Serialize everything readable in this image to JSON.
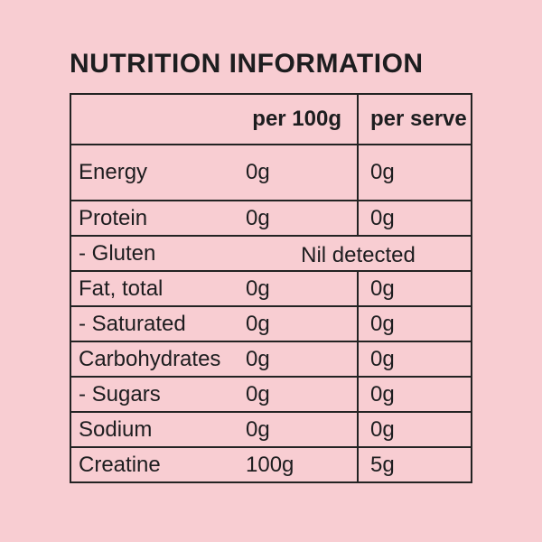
{
  "page": {
    "background_color": "#f8cdd2",
    "text_color": "#1d1d1f",
    "border_color": "#232323"
  },
  "title": "NUTRITION INFORMATION",
  "table": {
    "columns": [
      "",
      "per 100g",
      "per serve"
    ],
    "rows": [
      {
        "label": "Energy",
        "per_100g": "0g",
        "per_serve": "0g"
      },
      {
        "label": "Protein",
        "per_100g": "0g",
        "per_serve": "0g"
      },
      {
        "label": "- Gluten",
        "merged": "Nil detected"
      },
      {
        "label": "Fat, total",
        "per_100g": "0g",
        "per_serve": "0g"
      },
      {
        "label": "- Saturated",
        "per_100g": "0g",
        "per_serve": "0g"
      },
      {
        "label": "Carbohydrates",
        "per_100g": "0g",
        "per_serve": "0g"
      },
      {
        "label": "- Sugars",
        "per_100g": "0g",
        "per_serve": "0g"
      },
      {
        "label": "Sodium",
        "per_100g": "0g",
        "per_serve": "0g"
      },
      {
        "label": "Creatine",
        "per_100g": "100g",
        "per_serve": "5g"
      }
    ]
  }
}
